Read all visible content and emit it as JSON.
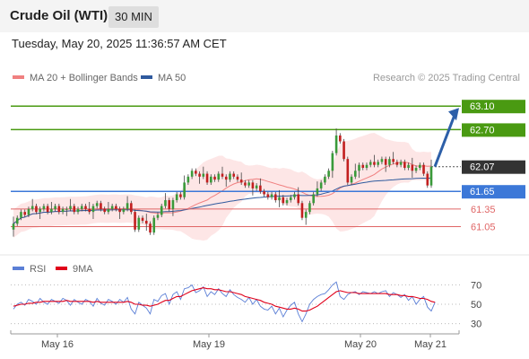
{
  "header": {
    "title": "Crude Oil (WTI)",
    "timeframe": "30 MIN",
    "datetime": "Tuesday, May 20, 2025 11:36:57 AM CET"
  },
  "credit": "Research © 2025 Trading Central",
  "colors": {
    "bull": "#3a9a3a",
    "bear": "#c21f1f",
    "ma20": "#f08080",
    "band_fill": "#fde2e2",
    "ma50": "#2f5a9e",
    "resistance": "#4a9a12",
    "pivot": "#3c78d8",
    "support": "#e06666",
    "rsi": "#5b7fd6",
    "rsi_ma": "#e0001a",
    "arrow": "#2d5fa8"
  },
  "chart_data": [
    {
      "type": "candlestick",
      "legend": [
        {
          "name": "MA 20 + Bollinger Bands",
          "color": "#f08080"
        },
        {
          "name": "MA 50",
          "color": "#2f5a9e"
        }
      ],
      "legend_position": "top-left",
      "x_ticks": [
        "May 16",
        "May 19",
        "May 20",
        "May 21"
      ],
      "ylim": [
        60.6,
        63.5
      ],
      "grid": false,
      "levels": [
        {
          "value": 63.1,
          "label": "63.10",
          "kind": "resistance"
        },
        {
          "value": 62.7,
          "label": "62.70",
          "kind": "resistance"
        },
        {
          "value": 62.07,
          "label": "62.07",
          "kind": "last"
        },
        {
          "value": 61.65,
          "label": "61.65",
          "kind": "pivot"
        },
        {
          "value": 61.35,
          "label": "61.35",
          "kind": "support"
        },
        {
          "value": 61.05,
          "label": "61.05",
          "kind": "support"
        }
      ],
      "annotation": "arrow pointing up toward 63.10",
      "closes": [
        61.1,
        61.2,
        61.3,
        61.25,
        61.35,
        61.4,
        61.3,
        61.35,
        61.4,
        61.3,
        61.35,
        61.4,
        61.3,
        61.35,
        61.35,
        61.4,
        61.3,
        61.35,
        61.4,
        61.35,
        61.3,
        61.4,
        61.45,
        61.35,
        61.3,
        61.35,
        61.4,
        61.35,
        61.3,
        61.35,
        61.45,
        61.3,
        61.0,
        61.2,
        61.15,
        61.1,
        60.95,
        61.2,
        61.25,
        61.4,
        61.5,
        61.35,
        61.5,
        61.6,
        61.55,
        61.8,
        61.9,
        62.0,
        61.95,
        61.9,
        61.95,
        61.8,
        61.9,
        61.85,
        61.95,
        61.9,
        61.85,
        61.95,
        61.9,
        61.85,
        61.8,
        61.75,
        61.8,
        61.7,
        61.75,
        61.65,
        61.6,
        61.55,
        61.6,
        61.5,
        61.55,
        61.45,
        61.5,
        61.55,
        61.6,
        61.45,
        61.2,
        61.3,
        61.45,
        61.6,
        61.7,
        61.8,
        61.9,
        62.0,
        62.3,
        62.6,
        62.5,
        62.2,
        61.8,
        61.9,
        62.0,
        62.1,
        62.05,
        62.1,
        62.15,
        62.1,
        62.15,
        62.2,
        62.1,
        62.2,
        62.15,
        62.1,
        62.15,
        62.05,
        62.1,
        62.0,
        62.05,
        62.1,
        61.95,
        61.75,
        62.07
      ],
      "opens": [
        61.0,
        61.1,
        61.2,
        61.3,
        61.25,
        61.35,
        61.4,
        61.3,
        61.35,
        61.4,
        61.3,
        61.35,
        61.4,
        61.3,
        61.35,
        61.35,
        61.4,
        61.3,
        61.35,
        61.4,
        61.35,
        61.3,
        61.4,
        61.45,
        61.35,
        61.3,
        61.35,
        61.4,
        61.35,
        61.3,
        61.35,
        61.45,
        61.3,
        61.0,
        61.2,
        61.15,
        61.1,
        60.95,
        61.2,
        61.25,
        61.4,
        61.5,
        61.35,
        61.5,
        61.6,
        61.55,
        61.8,
        61.9,
        62.0,
        61.95,
        61.9,
        61.95,
        61.8,
        61.9,
        61.85,
        61.95,
        61.9,
        61.85,
        61.95,
        61.9,
        61.85,
        61.8,
        61.75,
        61.8,
        61.7,
        61.75,
        61.65,
        61.6,
        61.55,
        61.6,
        61.5,
        61.55,
        61.45,
        61.5,
        61.55,
        61.6,
        61.45,
        61.2,
        61.3,
        61.45,
        61.6,
        61.7,
        61.8,
        61.9,
        62.0,
        62.3,
        62.6,
        62.5,
        62.2,
        61.8,
        61.9,
        62.0,
        62.1,
        62.05,
        62.1,
        62.15,
        62.1,
        62.15,
        62.2,
        62.1,
        62.2,
        62.15,
        62.1,
        62.15,
        62.05,
        62.1,
        62.0,
        62.05,
        62.1,
        61.95,
        61.75
      ]
    },
    {
      "type": "line",
      "legend": [
        {
          "name": "RSI",
          "color": "#5b7fd6"
        },
        {
          "name": "9MA",
          "color": "#e0001a"
        }
      ],
      "legend_position": "top-left",
      "y_ticks": [
        70,
        50,
        30
      ],
      "ylim": [
        25,
        75
      ],
      "series": [
        {
          "name": "RSI",
          "values": [
            45,
            50,
            52,
            49,
            55,
            53,
            50,
            56,
            52,
            50,
            55,
            53,
            51,
            56,
            54,
            49,
            55,
            52,
            50,
            55,
            53,
            48,
            56,
            51,
            49,
            55,
            53,
            50,
            55,
            52,
            57,
            45,
            40,
            52,
            49,
            46,
            40,
            55,
            53,
            59,
            61,
            50,
            60,
            63,
            55,
            66,
            67,
            70,
            62,
            64,
            68,
            58,
            63,
            60,
            66,
            61,
            58,
            65,
            60,
            57,
            55,
            52,
            57,
            50,
            55,
            48,
            45,
            44,
            48,
            40,
            46,
            37,
            44,
            49,
            52,
            40,
            32,
            40,
            50,
            55,
            58,
            60,
            61,
            65,
            70,
            73,
            58,
            55,
            60,
            62,
            63,
            60,
            63,
            62,
            61,
            63,
            61,
            63,
            64,
            58,
            62,
            60,
            57,
            60,
            54,
            58,
            50,
            55,
            58,
            47,
            43,
            52
          ]
        },
        {
          "name": "9MA",
          "values": [
            48,
            49,
            50,
            50,
            51,
            51,
            52,
            52,
            53,
            53,
            53,
            53,
            53,
            53,
            54,
            53,
            53,
            53,
            53,
            53,
            53,
            52,
            53,
            52,
            52,
            52,
            52,
            52,
            52,
            52,
            53,
            52,
            50,
            50,
            49,
            49,
            48,
            49,
            50,
            52,
            54,
            54,
            56,
            58,
            58,
            60,
            62,
            64,
            65,
            66,
            67,
            66,
            66,
            65,
            65,
            64,
            63,
            63,
            62,
            61,
            60,
            58,
            57,
            56,
            55,
            54,
            52,
            51,
            50,
            48,
            47,
            46,
            45,
            45,
            46,
            45,
            43,
            43,
            44,
            46,
            48,
            51,
            54,
            57,
            60,
            63,
            64,
            63,
            62,
            62,
            62,
            61,
            61,
            61,
            61,
            61,
            61,
            61,
            61,
            60,
            60,
            60,
            59,
            59,
            58,
            58,
            57,
            56,
            56,
            55,
            53,
            52
          ]
        }
      ]
    }
  ]
}
